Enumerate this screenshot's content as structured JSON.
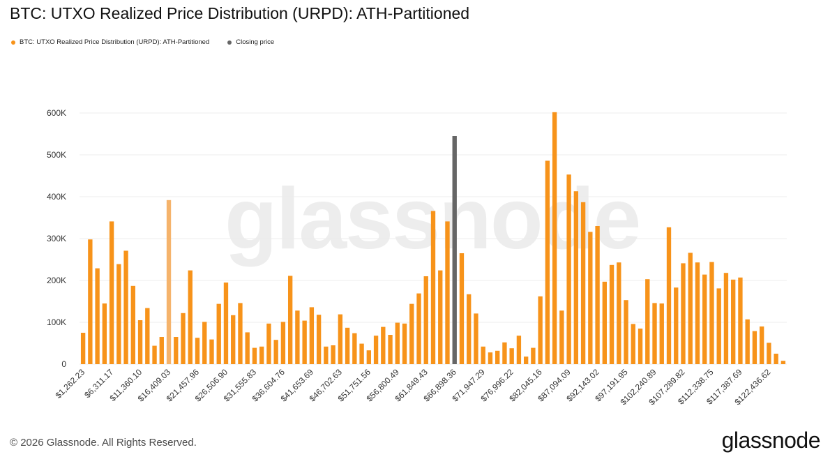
{
  "title": "BTC: UTXO Realized Price Distribution (URPD): ATH-Partitioned",
  "legend": [
    {
      "label": "BTC: UTXO Realized Price Distribution (URPD): ATH-Partitioned",
      "color": "#f7931a"
    },
    {
      "label": "Closing price",
      "color": "#666666"
    }
  ],
  "watermark": "glassnode",
  "footer": {
    "copyright": "© 2026 Glassnode. All Rights Reserved.",
    "logo": "glassnode"
  },
  "colors": {
    "bar": "#f7931a",
    "bar_highlight": "#f5b36b",
    "closing": "#666666",
    "grid": "#ececec"
  },
  "chart_data": {
    "type": "bar",
    "title": "BTC: UTXO Realized Price Distribution (URPD): ATH-Partitioned",
    "xlabel": "",
    "ylabel": "",
    "ylim": [
      0,
      600000
    ],
    "y_ticks": [
      0,
      100000,
      200000,
      300000,
      400000,
      500000,
      600000
    ],
    "y_tick_labels": [
      "0",
      "100K",
      "200K",
      "300K",
      "400K",
      "500K",
      "600K"
    ],
    "grid": true,
    "legend_position": "top-left",
    "x_tick_labels": [
      "$1,262.23",
      "$6,311.17",
      "$11,360.10",
      "$16,409.03",
      "$21,457.96",
      "$26,506.90",
      "$31,555.83",
      "$36,604.76",
      "$41,653.69",
      "$46,702.63",
      "$51,751.56",
      "$56,800.49",
      "$61,849.43",
      "$66,898.36",
      "$71,947.29",
      "$76,996.22",
      "$82,045.16",
      "$87,094.09",
      "$92,143.02",
      "$97,191.95",
      "$102,240.89",
      "$107,289.82",
      "$112,338.75",
      "$117,387.69",
      "$122,436.62"
    ],
    "x_tick_every": 4,
    "highlight_index": 12,
    "closing_index": 52,
    "series": [
      {
        "name": "BTC: UTXO Realized Price Distribution (URPD): ATH-Partitioned",
        "values": [
          75000,
          298000,
          229000,
          145000,
          341000,
          239000,
          271000,
          187000,
          105000,
          134000,
          44000,
          65000,
          392000,
          65000,
          122000,
          224000,
          63000,
          101000,
          59000,
          144000,
          195000,
          117000,
          146000,
          76000,
          39000,
          42000,
          97000,
          58000,
          101000,
          211000,
          128000,
          104000,
          136000,
          118000,
          42000,
          45000,
          119000,
          87000,
          74000,
          49000,
          33000,
          68000,
          89000,
          70000,
          99000,
          97000,
          144000,
          169000,
          210000,
          366000,
          224000,
          341000,
          545000,
          265000,
          167000,
          121000,
          42000,
          28000,
          32000,
          52000,
          38000,
          68000,
          18000,
          39000,
          162000,
          486000,
          602000,
          128000,
          453000,
          413000,
          387000,
          316000,
          330000,
          197000,
          237000,
          243000,
          153000,
          96000,
          85000,
          203000,
          146000,
          145000,
          327000,
          183000,
          241000,
          266000,
          243000,
          214000,
          244000,
          181000,
          218000,
          202000,
          207000,
          107000,
          79000,
          90000,
          51000,
          25000,
          8000
        ]
      }
    ]
  }
}
